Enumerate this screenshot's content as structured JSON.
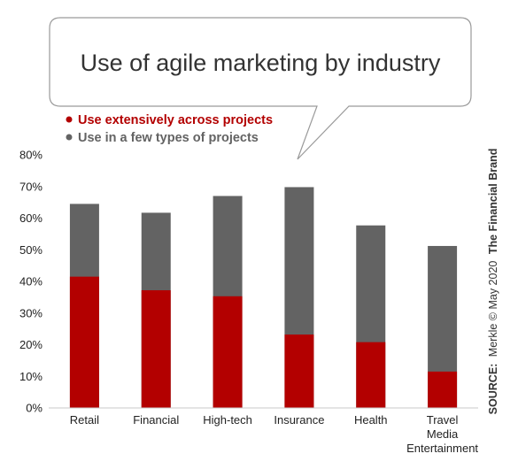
{
  "chart_data": {
    "type": "bar",
    "stacked": false,
    "overlaid": true,
    "title": "Use of agile marketing by industry",
    "categories": [
      [
        "Retail"
      ],
      [
        "Financial"
      ],
      [
        "High-tech"
      ],
      [
        "Insurance"
      ],
      [
        "Health"
      ],
      [
        "Travel",
        "Media",
        "Entertainment"
      ]
    ],
    "series": [
      {
        "name": "Use in a few types of projects",
        "color": "#636363",
        "values": [
          64.5,
          61.7,
          67.0,
          69.8,
          57.7,
          51.2
        ]
      },
      {
        "name": "Use extensively across projects",
        "color": "#b30000",
        "values": [
          41.5,
          37.2,
          35.3,
          23.2,
          20.8,
          11.5
        ]
      }
    ],
    "legend_order": [
      1,
      0
    ],
    "ylim": [
      0,
      80
    ],
    "yticks": [
      "0%",
      "10%",
      "20%",
      "30%",
      "40%",
      "50%",
      "60%",
      "70%",
      "80%"
    ],
    "xlabel": "",
    "ylabel": "",
    "grid": false,
    "legend_position": "top-left"
  },
  "source": {
    "prefix": "SOURCE:",
    "text": "Merkle © May 2020",
    "brand": "The Financial Brand"
  },
  "colors": {
    "title_text": "#333333",
    "bubble_border": "#9a9a9a"
  }
}
